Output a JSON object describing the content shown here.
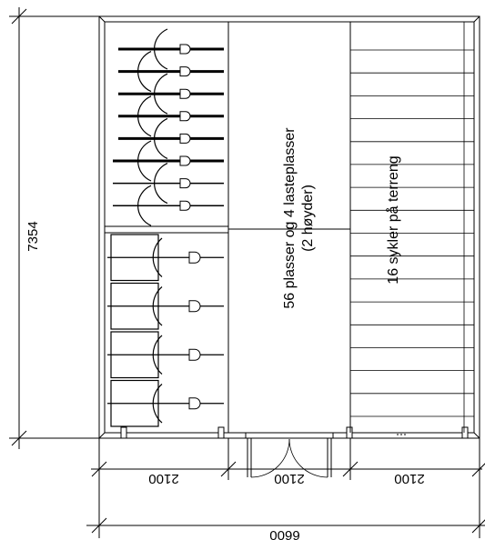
{
  "drawing": {
    "overall_height_dimension": "7354",
    "overall_width_dimension": "6600",
    "left_section_width": "2100",
    "middle_section_width": "2100",
    "right_section_width": "2100",
    "middle_label_line1": "56 plasser og 4 lasteplasser",
    "middle_label_line2": "(2 høyder)",
    "right_label": "16 sykler på terreng",
    "upper_hanging_racks": 8,
    "lower_rack_pairs": 4,
    "right_stall_rows": 17
  }
}
